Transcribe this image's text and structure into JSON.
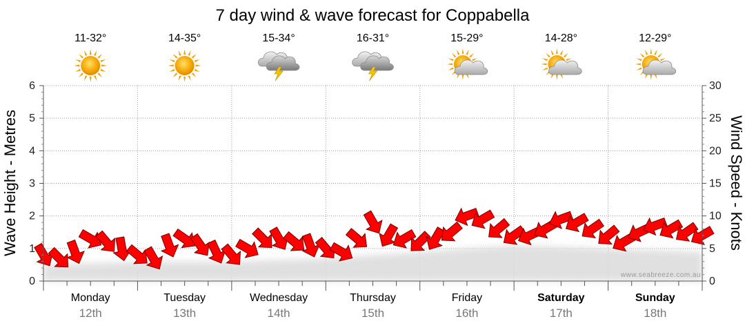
{
  "chart_data": {
    "type": "line",
    "title": "7 day wind & wave forecast for Coppabella",
    "ylabel_left": "Wave Height - Metres",
    "ylabel_right": "Wind Speed - Knots",
    "ylim_left": [
      0,
      6
    ],
    "ylim_right": [
      0,
      30
    ],
    "y_ticks_left": [
      "0",
      "1",
      "2",
      "3",
      "4",
      "5",
      "6"
    ],
    "y_ticks_right": [
      "0",
      "5",
      "10",
      "15",
      "20",
      "25",
      "30"
    ],
    "grid": true,
    "days": [
      {
        "name": "Monday",
        "date": "12th",
        "temp": "11-32°",
        "icon": "sun-icon",
        "bold": false
      },
      {
        "name": "Tuesday",
        "date": "13th",
        "temp": "14-35°",
        "icon": "sun-icon",
        "bold": false
      },
      {
        "name": "Wednesday",
        "date": "14th",
        "temp": "15-34°",
        "icon": "storm-icon",
        "bold": false
      },
      {
        "name": "Thursday",
        "date": "15th",
        "temp": "16-31°",
        "icon": "storm-icon",
        "bold": false
      },
      {
        "name": "Friday",
        "date": "16th",
        "temp": "15-29°",
        "icon": "partly-cloudy-icon",
        "bold": false
      },
      {
        "name": "Saturday",
        "date": "17th",
        "temp": "14-28°",
        "icon": "partly-cloudy-icon",
        "bold": true
      },
      {
        "name": "Sunday",
        "date": "18th",
        "temp": "12-29°",
        "icon": "partly-cloudy-icon",
        "bold": true
      }
    ],
    "series": [
      {
        "name": "Wind Speed - Knots",
        "color": "#ff0000",
        "x": [
          0,
          0.167,
          0.333,
          0.5,
          0.667,
          0.833,
          1,
          1.167,
          1.333,
          1.5,
          1.667,
          1.833,
          2,
          2.167,
          2.333,
          2.5,
          2.667,
          2.833,
          3,
          3.167,
          3.333,
          3.5,
          3.667,
          3.833,
          4,
          4.167,
          4.333,
          4.5,
          4.667,
          4.833,
          5,
          5.167,
          5.333,
          5.5,
          5.667,
          5.833,
          6,
          6.167,
          6.333,
          6.5,
          6.667,
          6.833,
          7
        ],
        "values": [
          4,
          3.5,
          4.5,
          6.5,
          6,
          5,
          4,
          3.5,
          5.5,
          6.5,
          5.5,
          4.5,
          4,
          5,
          6.5,
          6.5,
          6,
          5.5,
          5,
          4.5,
          6.5,
          9,
          7,
          6.5,
          6,
          6.5,
          7.5,
          10,
          9.5,
          8,
          7,
          7,
          8,
          9.5,
          9,
          8,
          7,
          6,
          7.5,
          8.5,
          8,
          7.5,
          7
        ],
        "direction_deg": [
          60,
          45,
          70,
          30,
          50,
          80,
          40,
          60,
          70,
          35,
          55,
          65,
          50,
          30,
          45,
          60,
          40,
          70,
          50,
          30,
          40,
          60,
          120,
          150,
          135,
          120,
          140,
          160,
          150,
          140,
          145,
          155,
          150,
          160,
          150,
          145,
          140,
          150,
          155,
          160,
          150,
          145,
          150
        ]
      },
      {
        "name": "Wave Height - Metres",
        "color": "#dddddd",
        "x": [
          0,
          1,
          2,
          3,
          4,
          5,
          6,
          7
        ],
        "values": [
          0.5,
          0.6,
          0.6,
          0.7,
          0.9,
          1.1,
          1.0,
          0.9
        ]
      }
    ]
  },
  "credit": "www.seabreeze.com.au"
}
